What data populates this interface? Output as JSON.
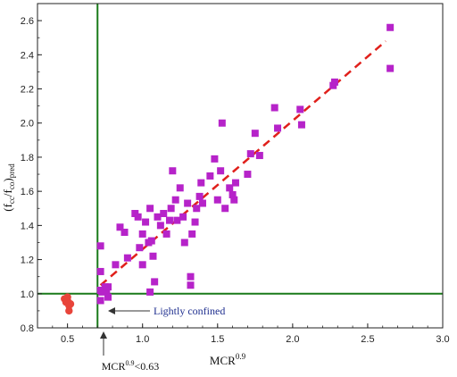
{
  "chart_data": {
    "type": "scatter",
    "xlabel": "MCR",
    "xlabel_sup": "0.9",
    "ylabel_main": "(f",
    "ylabel_cc_sub": "cc",
    "ylabel_mid": "/f",
    "ylabel_co_sub": "co",
    "ylabel_end": ")",
    "ylabel_pred_sub": "pred",
    "xlim": [
      0.3,
      3.0
    ],
    "ylim": [
      0.8,
      2.7
    ],
    "xticks": [
      0.5,
      1.0,
      1.5,
      2.0,
      2.5,
      3.0
    ],
    "xtick_labels": [
      "0.5",
      "1.0",
      "1.5",
      "2.0",
      "2.5",
      "3.0"
    ],
    "yticks": [
      0.8,
      1.0,
      1.2,
      1.4,
      1.6,
      1.8,
      2.0,
      2.2,
      2.4,
      2.6
    ],
    "ytick_labels": [
      "0.8",
      "1.0",
      "1.2",
      "1.4",
      "1.6",
      "1.8",
      "2.0",
      "2.2",
      "2.4",
      "2.6"
    ],
    "grid": false,
    "colors": {
      "confined": "#b623c9",
      "lightly_confined": "#e8443a",
      "threshold_lines": "#1a7a1a",
      "trend": "#e0201b",
      "annotation_text": "#1f2f8f"
    },
    "series": [
      {
        "marker": "circle",
        "color": "#e8443a",
        "points": [
          [
            0.48,
            0.97
          ],
          [
            0.49,
            0.95
          ],
          [
            0.5,
            0.96
          ],
          [
            0.51,
            0.93
          ],
          [
            0.51,
            0.9
          ],
          [
            0.52,
            0.94
          ],
          [
            0.5,
            0.98
          ]
        ]
      },
      {
        "marker": "square",
        "color": "#b623c9",
        "points": [
          [
            0.72,
            1.28
          ],
          [
            0.72,
            1.13
          ],
          [
            0.72,
            1.02
          ],
          [
            0.72,
            0.96
          ],
          [
            0.73,
            1.01
          ],
          [
            0.75,
            1.04
          ],
          [
            0.76,
            1.02
          ],
          [
            0.77,
            0.98
          ],
          [
            0.77,
            1.04
          ],
          [
            0.82,
            1.17
          ],
          [
            0.85,
            1.39
          ],
          [
            0.88,
            1.36
          ],
          [
            0.9,
            1.21
          ],
          [
            0.95,
            1.47
          ],
          [
            0.97,
            1.45
          ],
          [
            0.98,
            1.27
          ],
          [
            1.0,
            1.35
          ],
          [
            1.0,
            1.17
          ],
          [
            1.02,
            1.42
          ],
          [
            1.04,
            1.3
          ],
          [
            1.05,
            1.5
          ],
          [
            1.05,
            1.01
          ],
          [
            1.06,
            1.31
          ],
          [
            1.07,
            1.22
          ],
          [
            1.08,
            1.07
          ],
          [
            1.1,
            1.45
          ],
          [
            1.12,
            1.4
          ],
          [
            1.14,
            1.47
          ],
          [
            1.16,
            1.35
          ],
          [
            1.18,
            1.43
          ],
          [
            1.19,
            1.5
          ],
          [
            1.2,
            1.72
          ],
          [
            1.22,
            1.55
          ],
          [
            1.23,
            1.43
          ],
          [
            1.25,
            1.62
          ],
          [
            1.27,
            1.45
          ],
          [
            1.28,
            1.3
          ],
          [
            1.3,
            1.53
          ],
          [
            1.32,
            1.1
          ],
          [
            1.32,
            1.05
          ],
          [
            1.33,
            1.35
          ],
          [
            1.35,
            1.42
          ],
          [
            1.36,
            1.5
          ],
          [
            1.38,
            1.57
          ],
          [
            1.39,
            1.65
          ],
          [
            1.4,
            1.53
          ],
          [
            1.45,
            1.69
          ],
          [
            1.48,
            1.79
          ],
          [
            1.5,
            1.55
          ],
          [
            1.52,
            1.72
          ],
          [
            1.53,
            2.0
          ],
          [
            1.55,
            1.5
          ],
          [
            1.58,
            1.62
          ],
          [
            1.6,
            1.58
          ],
          [
            1.61,
            1.55
          ],
          [
            1.62,
            1.65
          ],
          [
            1.7,
            1.7
          ],
          [
            1.72,
            1.82
          ],
          [
            1.75,
            1.94
          ],
          [
            1.78,
            1.81
          ],
          [
            1.88,
            2.09
          ],
          [
            1.9,
            1.97
          ],
          [
            2.05,
            2.08
          ],
          [
            2.06,
            1.99
          ],
          [
            2.27,
            2.22
          ],
          [
            2.28,
            2.24
          ],
          [
            2.65,
            2.56
          ],
          [
            2.65,
            2.32
          ]
        ]
      }
    ],
    "trendline": {
      "from": [
        0.72,
        1.05
      ],
      "to": [
        2.62,
        2.48
      ],
      "style": "dashed"
    },
    "vertical_line": {
      "x": 0.7
    },
    "horizontal_line": {
      "y": 1.0
    },
    "annotations": {
      "lightly_confined": "Lightly confined",
      "threshold_main": "MCR",
      "threshold_sup": "0.9",
      "threshold_rest": "<0.63"
    }
  }
}
